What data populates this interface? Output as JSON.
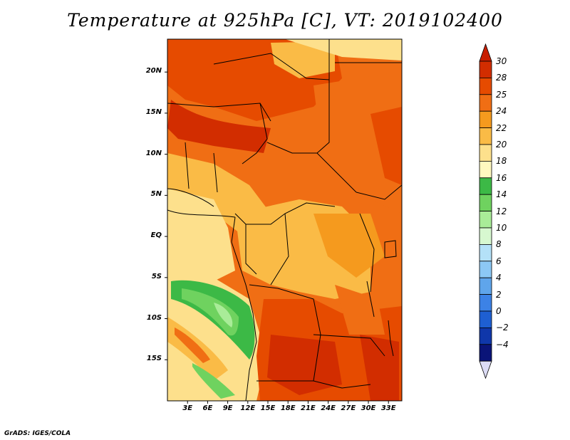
{
  "title": "Temperature at 925hPa [C], VT: 2019102400",
  "footer": "GrADS: IGES/COLA",
  "map": {
    "lon_min": 0,
    "lon_max": 35,
    "lat_min": -20,
    "lat_max": 24,
    "lat_ticks": [
      {
        "label": "20N",
        "value": 20
      },
      {
        "label": "15N",
        "value": 15
      },
      {
        "label": "10N",
        "value": 10
      },
      {
        "label": "5N",
        "value": 5
      },
      {
        "label": "EQ",
        "value": 0
      },
      {
        "label": "5S",
        "value": -5
      },
      {
        "label": "10S",
        "value": -10
      },
      {
        "label": "15S",
        "value": -15
      }
    ],
    "lon_ticks": [
      {
        "label": "3E",
        "value": 3
      },
      {
        "label": "6E",
        "value": 6
      },
      {
        "label": "9E",
        "value": 9
      },
      {
        "label": "12E",
        "value": 12
      },
      {
        "label": "15E",
        "value": 15
      },
      {
        "label": "18E",
        "value": 18
      },
      {
        "label": "21E",
        "value": 21
      },
      {
        "label": "24E",
        "value": 24
      },
      {
        "label": "27E",
        "value": 27
      },
      {
        "label": "30E",
        "value": 30
      },
      {
        "label": "33E",
        "value": 33
      }
    ]
  },
  "colorbar": {
    "levels": [
      {
        "label": "30",
        "color": "#d22d00"
      },
      {
        "label": "28",
        "color": "#e64b00"
      },
      {
        "label": "25",
        "color": "#f06e14"
      },
      {
        "label": "24",
        "color": "#f59a1e"
      },
      {
        "label": "22",
        "color": "#fabb46"
      },
      {
        "label": "20",
        "color": "#fde08c"
      },
      {
        "label": "18",
        "color": "#fff8bf"
      },
      {
        "label": "16",
        "color": "#3cb946"
      },
      {
        "label": "14",
        "color": "#6fd25f"
      },
      {
        "label": "12",
        "color": "#a9ec98"
      },
      {
        "label": "10",
        "color": "#d7f8d0"
      },
      {
        "label": "8",
        "color": "#b4e1f8"
      },
      {
        "label": "6",
        "color": "#8cc8f5"
      },
      {
        "label": "4",
        "color": "#5fa5eb"
      },
      {
        "label": "2",
        "color": "#3c82e6"
      },
      {
        "label": "0",
        "color": "#1e5fd2"
      },
      {
        "label": "−2",
        "color": "#0f37aa"
      },
      {
        "label": "−4",
        "color": "#0a1478"
      }
    ],
    "top_arrow_color": "#c81e00",
    "bottom_arrow_color": "#dcdcf5"
  }
}
